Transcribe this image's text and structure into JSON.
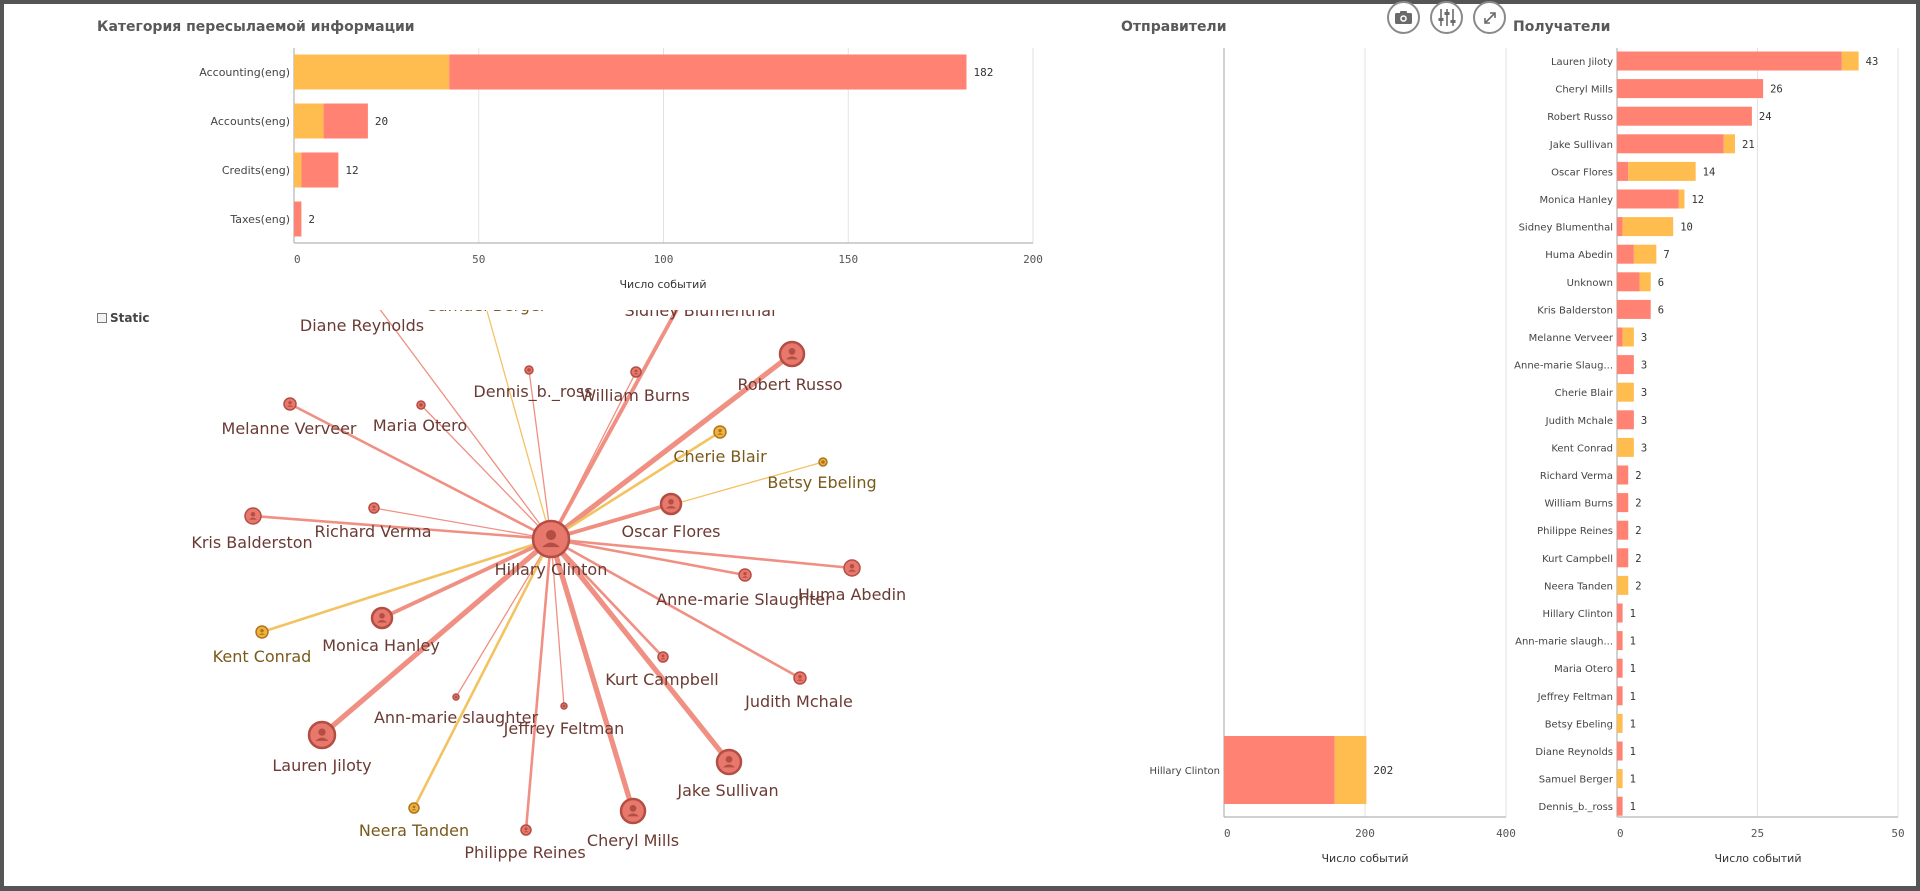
{
  "colors": {
    "red": "#ff8273",
    "orange": "#ffbd50",
    "grid": "#e2e2e2",
    "axis": "#b4b4b4",
    "label": "#444444",
    "node_red": "#e8776c",
    "node_red_stroke": "#b34e45",
    "node_orange": "#f4b03c",
    "node_orange_stroke": "#a8781f"
  },
  "toolbar": {
    "snapshot_icon": "camera-icon",
    "adjust_icon": "sliders-icon",
    "expand_icon": "expand-icon"
  },
  "static_toggle": {
    "label": "Static"
  },
  "chart_data": [
    {
      "type": "bar",
      "orientation": "horizontal",
      "stacked": true,
      "title": "Категория пересылаемой информации",
      "categories": [
        "Accounting(eng)",
        "Accounts(eng)",
        "Credits(eng)",
        "Taxes(eng)"
      ],
      "series": [
        {
          "name": "orange",
          "values": [
            42,
            8,
            2,
            0
          ]
        },
        {
          "name": "red",
          "values": [
            140,
            12,
            10,
            2
          ]
        }
      ],
      "totals": [
        "182",
        "20",
        "12",
        "2"
      ],
      "xlabel": "Число событий",
      "xlim": [
        0,
        200
      ],
      "xticks": [
        0,
        50,
        100,
        150,
        200
      ],
      "xtick_labels": [
        "0",
        "50",
        "100",
        "150",
        "200"
      ]
    },
    {
      "type": "bar",
      "orientation": "horizontal",
      "stacked": true,
      "title": "Отправители",
      "categories": [
        "Hillary Clinton"
      ],
      "series": [
        {
          "name": "red",
          "values": [
            157
          ]
        },
        {
          "name": "orange",
          "values": [
            45
          ]
        }
      ],
      "totals": [
        "202"
      ],
      "xlabel": "Число событий",
      "xlim": [
        0,
        400
      ],
      "xticks": [
        0,
        200,
        400
      ],
      "xtick_labels": [
        "0",
        "200",
        "400"
      ]
    },
    {
      "type": "bar",
      "orientation": "horizontal",
      "stacked": true,
      "title": "Получатели",
      "categories": [
        "Lauren Jiloty",
        "Cheryl Mills",
        "Robert Russo",
        "Jake Sullivan",
        "Oscar Flores",
        "Monica Hanley",
        "Sidney Blumenthal",
        "Huma Abedin",
        "Unknown",
        "Kris Balderston",
        "Melanne Verveer",
        "Anne-marie Slaug...",
        "Cherie Blair",
        "Judith Mchale",
        "Kent Conrad",
        "Richard Verma",
        "William Burns",
        "Philippe Reines",
        "Kurt Campbell",
        "Neera Tanden",
        "Hillary Clinton",
        "Ann-marie slaugh...",
        "Maria Otero",
        "Jeffrey Feltman",
        "Betsy Ebeling",
        "Diane Reynolds",
        "Samuel Berger",
        "Dennis_b._ross"
      ],
      "series": [
        {
          "name": "red",
          "values": [
            40,
            26,
            24,
            19,
            2,
            11,
            1,
            3,
            4,
            6,
            1,
            3,
            0,
            3,
            0,
            2,
            2,
            2,
            2,
            0,
            1,
            1,
            1,
            1,
            0,
            1,
            0,
            1
          ]
        },
        {
          "name": "orange",
          "values": [
            3,
            0,
            0,
            2,
            12,
            1,
            9,
            4,
            2,
            0,
            2,
            0,
            3,
            0,
            3,
            0,
            0,
            0,
            0,
            2,
            0,
            0,
            0,
            0,
            1,
            0,
            1,
            0
          ]
        }
      ],
      "totals": [
        "43",
        "26",
        "24",
        "21",
        "14",
        "12",
        "10",
        "7",
        "6",
        "6",
        "3",
        "3",
        "3",
        "3",
        "3",
        "2",
        "2",
        "2",
        "2",
        "2",
        "1",
        "1",
        "1",
        "1",
        "1",
        "1",
        "1",
        "1"
      ],
      "xlabel": "Число событий",
      "xlim": [
        0,
        50
      ],
      "xticks": [
        0,
        25,
        50
      ],
      "xtick_labels": [
        "0",
        "25",
        "50"
      ]
    }
  ],
  "network": {
    "center": {
      "name": "Hillary Clinton",
      "color": "red"
    },
    "nodes": [
      {
        "name": "Diane Reynolds",
        "color": "red",
        "weight": 1,
        "marker": false
      },
      {
        "name": "Sidney Blumenthal",
        "color": "red",
        "weight": 3,
        "marker": false
      },
      {
        "name": "Dennis_b._ross",
        "color": "red",
        "weight": 1,
        "marker": true
      },
      {
        "name": "William Burns",
        "color": "red",
        "weight": 1,
        "marker": true
      },
      {
        "name": "Robert Russo",
        "color": "red",
        "weight": 4,
        "marker": true
      },
      {
        "name": "Melanne Verveer",
        "color": "red",
        "weight": 2,
        "marker": true
      },
      {
        "name": "Maria Otero",
        "color": "red",
        "weight": 1,
        "marker": true
      },
      {
        "name": "Cherie Blair",
        "color": "orange",
        "weight": 2,
        "marker": true
      },
      {
        "name": "Betsy Ebeling",
        "color": "orange",
        "weight": 1,
        "marker": true
      },
      {
        "name": "Kris Balderston",
        "color": "red",
        "weight": 2,
        "marker": true
      },
      {
        "name": "Richard Verma",
        "color": "red",
        "weight": 1,
        "marker": true
      },
      {
        "name": "Oscar Flores",
        "color": "red",
        "weight": 3,
        "marker": true
      },
      {
        "name": "Anne-marie Slaughter",
        "color": "red",
        "weight": 2,
        "marker": true
      },
      {
        "name": "Huma Abedin",
        "color": "red",
        "weight": 2,
        "marker": true
      },
      {
        "name": "Kent Conrad",
        "color": "orange",
        "weight": 2,
        "marker": true
      },
      {
        "name": "Monica Hanley",
        "color": "red",
        "weight": 3,
        "marker": true
      },
      {
        "name": "Kurt Campbell",
        "color": "red",
        "weight": 2,
        "marker": true
      },
      {
        "name": "Judith Mchale",
        "color": "red",
        "weight": 2,
        "marker": true
      },
      {
        "name": "Ann-marie slaughter",
        "color": "red",
        "weight": 1,
        "marker": true
      },
      {
        "name": "Jeffrey Feltman",
        "color": "red",
        "weight": 1,
        "marker": true
      },
      {
        "name": "Lauren Jiloty",
        "color": "red",
        "weight": 4,
        "marker": true
      },
      {
        "name": "Jake Sullivan",
        "color": "red",
        "weight": 4,
        "marker": true
      },
      {
        "name": "Neera Tanden",
        "color": "orange",
        "weight": 2,
        "marker": true
      },
      {
        "name": "Philippe Reines",
        "color": "red",
        "weight": 2,
        "marker": true
      },
      {
        "name": "Cheryl Mills",
        "color": "red",
        "weight": 4,
        "marker": true
      },
      {
        "name": "Samuel Berger",
        "color": "orange",
        "weight": 1,
        "marker": false
      }
    ]
  }
}
